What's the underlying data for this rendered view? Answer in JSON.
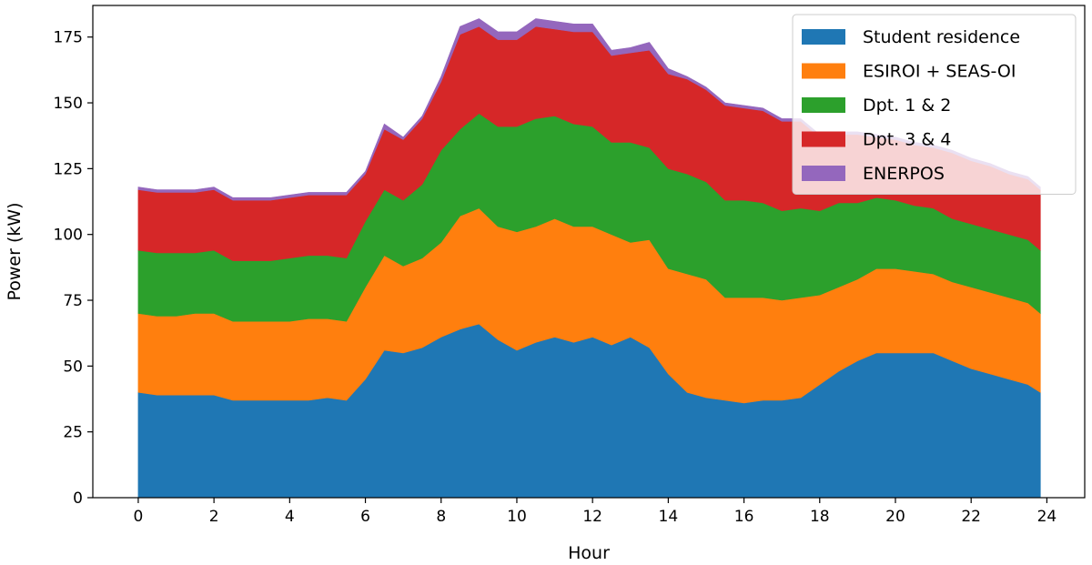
{
  "chart_data": {
    "type": "area",
    "stacked": true,
    "title": "",
    "xlabel": "Hour",
    "ylabel": "Power (kW)",
    "xlim": [
      -1.2,
      25.0
    ],
    "ylim": [
      0,
      187
    ],
    "xticks": [
      0,
      2,
      4,
      6,
      8,
      10,
      12,
      14,
      16,
      18,
      20,
      22,
      24
    ],
    "yticks": [
      0,
      25,
      50,
      75,
      100,
      125,
      150,
      175
    ],
    "grid": false,
    "legend_position": "top-right",
    "x": [
      0,
      0.5,
      1,
      1.5,
      2,
      2.5,
      3,
      3.5,
      4,
      4.5,
      5,
      5.5,
      6,
      6.5,
      7,
      7.5,
      8,
      8.5,
      9,
      9.5,
      10,
      10.5,
      11,
      11.5,
      12,
      12.5,
      13,
      13.5,
      14,
      14.5,
      15,
      15.5,
      16,
      16.5,
      17,
      17.5,
      18,
      18.5,
      19,
      19.5,
      20,
      20.5,
      21,
      21.5,
      22,
      22.5,
      23,
      23.5,
      23.83
    ],
    "series": [
      {
        "name": "Student residence",
        "color": "#1f77b4",
        "values": [
          40,
          39,
          39,
          39,
          39,
          37,
          37,
          37,
          37,
          37,
          38,
          37,
          45,
          56,
          55,
          57,
          61,
          64,
          66,
          60,
          56,
          59,
          61,
          59,
          61,
          58,
          61,
          57,
          47,
          40,
          38,
          37,
          36,
          37,
          37,
          38,
          43,
          48,
          52,
          55,
          55,
          55,
          55,
          52,
          49,
          47,
          45,
          43,
          40
        ]
      },
      {
        "name": "ESIROI + SEAS-OI",
        "color": "#ff7f0e",
        "values": [
          30,
          30,
          30,
          31,
          31,
          30,
          30,
          30,
          30,
          31,
          30,
          30,
          35,
          36,
          33,
          34,
          36,
          43,
          44,
          43,
          45,
          44,
          45,
          44,
          42,
          42,
          36,
          41,
          40,
          45,
          45,
          39,
          40,
          39,
          38,
          38,
          34,
          32,
          31,
          32,
          32,
          31,
          30,
          30,
          31,
          31,
          31,
          31,
          30
        ]
      },
      {
        "name": "Dpt. 1 & 2",
        "color": "#2ca02c",
        "values": [
          24,
          24,
          24,
          23,
          24,
          23,
          23,
          23,
          24,
          24,
          24,
          24,
          25,
          25,
          25,
          28,
          35,
          33,
          36,
          38,
          40,
          41,
          39,
          39,
          38,
          35,
          38,
          35,
          38,
          38,
          37,
          37,
          37,
          36,
          34,
          34,
          32,
          32,
          29,
          27,
          26,
          25,
          25,
          24,
          24,
          24,
          24,
          24,
          24
        ]
      },
      {
        "name": "Dpt. 3 & 4",
        "color": "#d62728",
        "values": [
          23,
          23,
          23,
          23,
          23,
          23,
          23,
          23,
          23,
          23,
          23,
          24,
          18,
          23,
          23,
          25,
          26,
          36,
          33,
          33,
          33,
          35,
          33,
          35,
          36,
          33,
          34,
          37,
          36,
          36,
          35,
          36,
          35,
          35,
          34,
          33,
          28,
          26,
          26,
          23,
          23,
          23,
          23,
          25,
          24,
          24,
          23,
          23,
          23
        ]
      },
      {
        "name": "ENERPOS",
        "color": "#9467bd",
        "values": [
          1,
          1,
          1,
          1,
          1,
          1,
          1,
          1,
          1,
          1,
          1,
          1,
          1,
          2,
          1,
          1,
          2,
          3,
          3,
          3,
          3,
          3,
          3,
          3,
          3,
          2,
          2,
          3,
          2,
          1,
          1,
          1,
          1,
          1,
          1,
          1,
          1,
          1,
          1,
          1,
          1,
          1,
          1,
          1,
          1,
          1,
          1,
          1,
          1
        ]
      }
    ]
  }
}
